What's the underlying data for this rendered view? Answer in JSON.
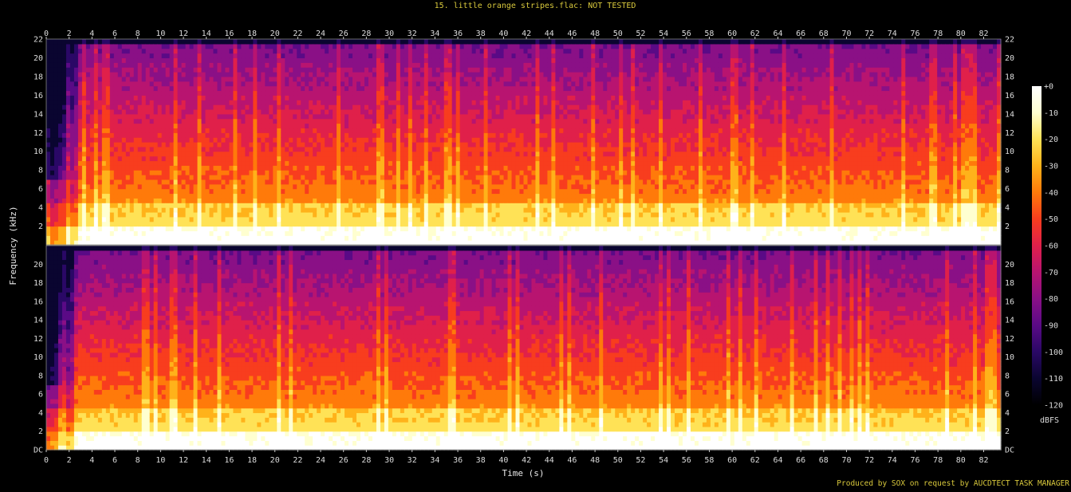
{
  "title": "15. little orange stripes.flac: NOT TESTED",
  "footer": "Produced by SOX on request by AUCDTECT TASK MANAGER",
  "chart_data": {
    "type": "heatmap",
    "title": "15. little orange stripes.flac: NOT TESTED",
    "xlabel": "Time (s)",
    "ylabel": "Frequency (kHz)",
    "xlim": [
      0,
      83.5
    ],
    "ylim": [
      0,
      22
    ],
    "x_ticks": [
      "0",
      "2",
      "4",
      "6",
      "8",
      "10",
      "12",
      "14",
      "16",
      "18",
      "20",
      "22",
      "24",
      "26",
      "28",
      "30",
      "32",
      "34",
      "36",
      "38",
      "40",
      "42",
      "44",
      "46",
      "48",
      "50",
      "52",
      "54",
      "56",
      "58",
      "60",
      "62",
      "64",
      "66",
      "68",
      "70",
      "72",
      "74",
      "76",
      "78",
      "80",
      "82"
    ],
    "y_ticks_top_channel": [
      "22",
      "20",
      "18",
      "16",
      "14",
      "12",
      "10",
      "8",
      "6",
      "4",
      "2"
    ],
    "y_ticks_bottom_channel": [
      "20",
      "18",
      "16",
      "14",
      "12",
      "10",
      "8",
      "6",
      "4",
      "2",
      "DC"
    ],
    "channels": 2,
    "colorbar": {
      "unit": "dBFS",
      "range": [
        -120,
        0
      ],
      "labels": [
        "+0",
        "-10",
        "-20",
        "-30",
        "-40",
        "-50",
        "-60",
        "-70",
        "-80",
        "-90",
        "-100",
        "-110",
        "-120"
      ],
      "palette": [
        "#000000",
        "#0a0530",
        "#2a0866",
        "#5a0a86",
        "#8a1086",
        "#b81470",
        "#e0204a",
        "#f83d1e",
        "#ff7a0a",
        "#ffb21a",
        "#ffe256",
        "#ffffd0",
        "#ffffff"
      ]
    }
  }
}
